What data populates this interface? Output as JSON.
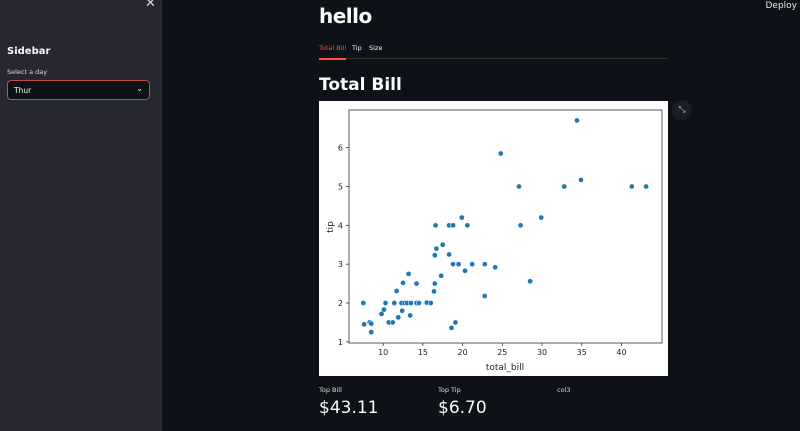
{
  "sidebar": {
    "close_icon": "close-icon",
    "title": "Sidebar",
    "select_label": "Select a day",
    "select_value": "Thur"
  },
  "header": {
    "deploy": "Deploy"
  },
  "main": {
    "title": "hello",
    "tabs": [
      {
        "label": "Total Bill",
        "active": true
      },
      {
        "label": "Tip"
      },
      {
        "label": "Size"
      }
    ],
    "section_title": "Total Bill",
    "metrics": [
      {
        "label": "Top Bill",
        "value": "$43.11"
      },
      {
        "label": "Top Tip",
        "value": "$6.70"
      },
      {
        "label": "col3",
        "value": ""
      }
    ]
  },
  "colors": {
    "accent": "#ff4b4b",
    "point": "#1f77b4"
  },
  "chart_data": {
    "type": "scatter",
    "xlabel": "total_bill",
    "ylabel": "tip",
    "xlim": [
      5.7,
      45.1
    ],
    "ylim": [
      0.97,
      6.97
    ],
    "xticks": [
      10,
      15,
      20,
      25,
      30,
      35,
      40
    ],
    "yticks": [
      1,
      2,
      3,
      4,
      5,
      6
    ],
    "grid": false,
    "points": [
      [
        7.5,
        2.0
      ],
      [
        7.6,
        1.45
      ],
      [
        8.3,
        1.5
      ],
      [
        8.5,
        1.47
      ],
      [
        8.5,
        1.25
      ],
      [
        9.8,
        1.72
      ],
      [
        10.1,
        1.83
      ],
      [
        10.3,
        2.0
      ],
      [
        10.7,
        1.5
      ],
      [
        11.2,
        1.5
      ],
      [
        11.4,
        2.0
      ],
      [
        11.7,
        2.31
      ],
      [
        11.9,
        1.63
      ],
      [
        12.3,
        2.0
      ],
      [
        12.4,
        1.8
      ],
      [
        12.5,
        2.52
      ],
      [
        12.7,
        2.0
      ],
      [
        13.0,
        2.0
      ],
      [
        13.2,
        2.75
      ],
      [
        13.4,
        1.68
      ],
      [
        13.5,
        2.0
      ],
      [
        14.2,
        2.0
      ],
      [
        14.2,
        2.5
      ],
      [
        14.5,
        2.0
      ],
      [
        15.5,
        2.01
      ],
      [
        16.0,
        2.0
      ],
      [
        16.4,
        2.3
      ],
      [
        16.5,
        2.5
      ],
      [
        16.5,
        3.23
      ],
      [
        16.6,
        4.0
      ],
      [
        16.7,
        3.4
      ],
      [
        17.3,
        2.7
      ],
      [
        17.5,
        3.5
      ],
      [
        18.3,
        4.0
      ],
      [
        18.3,
        3.25
      ],
      [
        18.6,
        1.36
      ],
      [
        18.8,
        4.0
      ],
      [
        18.8,
        3.0
      ],
      [
        19.1,
        1.5
      ],
      [
        19.5,
        3.0
      ],
      [
        19.9,
        4.2
      ],
      [
        20.3,
        2.83
      ],
      [
        20.6,
        4.0
      ],
      [
        21.2,
        3.0
      ],
      [
        22.8,
        3.0
      ],
      [
        22.8,
        2.18
      ],
      [
        24.1,
        2.92
      ],
      [
        24.8,
        5.85
      ],
      [
        27.1,
        5.0
      ],
      [
        27.3,
        4.0
      ],
      [
        28.5,
        2.56
      ],
      [
        29.9,
        4.2
      ],
      [
        32.8,
        5.0
      ],
      [
        34.4,
        6.7
      ],
      [
        34.9,
        5.17
      ],
      [
        41.3,
        5.0
      ],
      [
        43.1,
        5.0
      ]
    ]
  }
}
